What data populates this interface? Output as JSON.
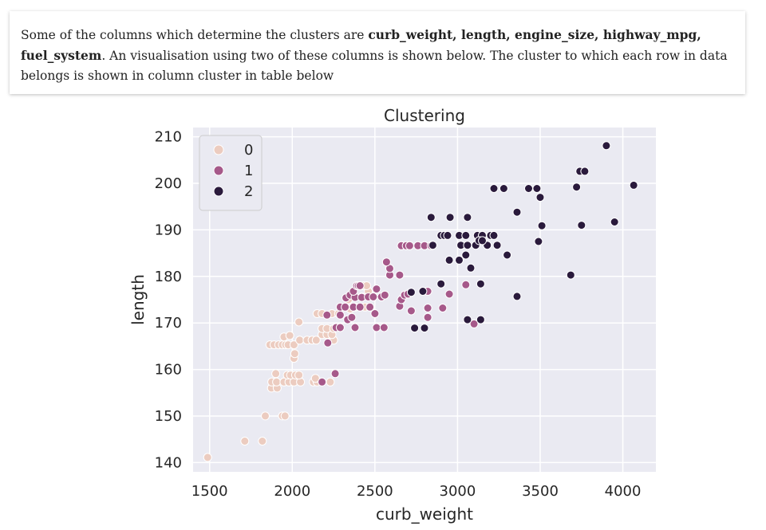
{
  "description": {
    "part1": "Some of the columns which determine the clusters are ",
    "bold_columns": "curb_weight, length, engine_size, highway_mpg, fuel_system",
    "part2": ". An visualisation using two of these columns is shown below. The cluster to which each row in data belongs is shown in column cluster in table below"
  },
  "chart_data": {
    "type": "scatter",
    "title": "Clustering",
    "xlabel": "curb_weight",
    "ylabel": "length",
    "xlim": [
      1400,
      4200
    ],
    "ylim": [
      138,
      212
    ],
    "xticks": [
      1500,
      2000,
      2500,
      3000,
      3500,
      4000
    ],
    "yticks": [
      140,
      150,
      160,
      170,
      180,
      190,
      200,
      210
    ],
    "grid": true,
    "legend_position": "top-left",
    "legend_title": "",
    "colors": {
      "0": "#ecccc0",
      "1": "#a6598a",
      "2": "#2a1a3c",
      "background": "#eaeaf2",
      "grid": "#ffffff",
      "marker_edge": "#ffffff"
    },
    "series": [
      {
        "name": "0",
        "points": [
          [
            1488,
            141.1
          ],
          [
            1713,
            144.6
          ],
          [
            1819,
            144.6
          ],
          [
            1837,
            150.0
          ],
          [
            1940,
            150.0
          ],
          [
            1956,
            150.0
          ],
          [
            1874,
            156.0
          ],
          [
            1909,
            156.0
          ],
          [
            1876,
            157.3
          ],
          [
            1905,
            157.3
          ],
          [
            1950,
            157.3
          ],
          [
            1980,
            157.3
          ],
          [
            2010,
            157.3
          ],
          [
            2050,
            157.3
          ],
          [
            2128,
            157.3
          ],
          [
            2150,
            157.3
          ],
          [
            2230,
            157.3
          ],
          [
            1900,
            159.1
          ],
          [
            1970,
            158.8
          ],
          [
            1990,
            158.8
          ],
          [
            2020,
            158.8
          ],
          [
            2040,
            158.8
          ],
          [
            2140,
            158.1
          ],
          [
            2010,
            162.4
          ],
          [
            2015,
            163.4
          ],
          [
            1865,
            165.3
          ],
          [
            1890,
            165.3
          ],
          [
            1918,
            165.3
          ],
          [
            1940,
            165.3
          ],
          [
            1960,
            165.3
          ],
          [
            1975,
            165.3
          ],
          [
            2010,
            165.3
          ],
          [
            2045,
            166.3
          ],
          [
            2090,
            166.3
          ],
          [
            2120,
            166.3
          ],
          [
            2145,
            166.3
          ],
          [
            2250,
            166.3
          ],
          [
            1950,
            167.0
          ],
          [
            1985,
            167.3
          ],
          [
            2180,
            167.5
          ],
          [
            2210,
            167.5
          ],
          [
            2240,
            167.5
          ],
          [
            2180,
            168.8
          ],
          [
            2210,
            168.8
          ],
          [
            2250,
            168.8
          ],
          [
            2040,
            170.2
          ],
          [
            2150,
            172.0
          ],
          [
            2180,
            172.0
          ],
          [
            2240,
            172.0
          ],
          [
            2280,
            172.0
          ],
          [
            2350,
            173.0
          ],
          [
            2380,
            173.4
          ],
          [
            2440,
            173.4
          ],
          [
            2340,
            175.0
          ],
          [
            2420,
            175.6
          ],
          [
            2460,
            176.8
          ],
          [
            2430,
            178.0
          ],
          [
            2450,
            178.0
          ]
        ]
      },
      {
        "name": "1",
        "points": [
          [
            2180,
            157.3
          ],
          [
            2260,
            159.1
          ],
          [
            2215,
            165.7
          ],
          [
            2265,
            169.0
          ],
          [
            2290,
            169.0
          ],
          [
            2380,
            169.0
          ],
          [
            2510,
            169.0
          ],
          [
            2555,
            169.0
          ],
          [
            2335,
            170.7
          ],
          [
            2210,
            171.7
          ],
          [
            2290,
            171.7
          ],
          [
            2360,
            171.2
          ],
          [
            2500,
            172.0
          ],
          [
            2290,
            173.4
          ],
          [
            2320,
            173.4
          ],
          [
            2370,
            173.4
          ],
          [
            2410,
            173.4
          ],
          [
            2470,
            173.4
          ],
          [
            2650,
            173.6
          ],
          [
            2720,
            172.6
          ],
          [
            2820,
            173.2
          ],
          [
            2910,
            173.2
          ],
          [
            2820,
            171.2
          ],
          [
            3100,
            169.8
          ],
          [
            2325,
            175.4
          ],
          [
            2350,
            176.0
          ],
          [
            2380,
            175.5
          ],
          [
            2420,
            175.5
          ],
          [
            2460,
            175.6
          ],
          [
            2490,
            175.6
          ],
          [
            2540,
            175.6
          ],
          [
            2560,
            176.0
          ],
          [
            2660,
            175.0
          ],
          [
            2680,
            176.0
          ],
          [
            2700,
            176.2
          ],
          [
            2370,
            176.8
          ],
          [
            2390,
            178.0
          ],
          [
            2400,
            178.0
          ],
          [
            2410,
            178.0
          ],
          [
            2510,
            177.3
          ],
          [
            2820,
            176.8
          ],
          [
            2950,
            176.2
          ],
          [
            3050,
            178.2
          ],
          [
            2650,
            180.3
          ],
          [
            2590,
            180.3
          ],
          [
            2590,
            181.7
          ],
          [
            2570,
            183.1
          ],
          [
            2660,
            186.6
          ],
          [
            2690,
            186.6
          ],
          [
            2710,
            186.6
          ],
          [
            2760,
            186.6
          ],
          [
            2800,
            186.6
          ],
          [
            2840,
            186.6
          ]
        ]
      },
      {
        "name": "2",
        "points": [
          [
            2840,
            192.7
          ],
          [
            2955,
            192.7
          ],
          [
            3060,
            192.7
          ],
          [
            2900,
            188.8
          ],
          [
            2920,
            188.8
          ],
          [
            2940,
            188.8
          ],
          [
            3010,
            188.8
          ],
          [
            3050,
            188.8
          ],
          [
            3120,
            188.8
          ],
          [
            3150,
            188.8
          ],
          [
            3200,
            188.8
          ],
          [
            3220,
            188.8
          ],
          [
            2850,
            186.7
          ],
          [
            3020,
            186.7
          ],
          [
            3060,
            186.7
          ],
          [
            3110,
            186.7
          ],
          [
            3180,
            186.7
          ],
          [
            3240,
            186.7
          ],
          [
            3130,
            187.7
          ],
          [
            3150,
            187.7
          ],
          [
            3300,
            184.6
          ],
          [
            3050,
            184.6
          ],
          [
            2950,
            183.5
          ],
          [
            3010,
            183.5
          ],
          [
            3080,
            181.8
          ],
          [
            3220,
            198.9
          ],
          [
            3280,
            198.9
          ],
          [
            3430,
            198.9
          ],
          [
            3480,
            198.9
          ],
          [
            3500,
            197.0
          ],
          [
            3360,
            193.8
          ],
          [
            3510,
            190.9
          ],
          [
            3490,
            187.5
          ],
          [
            3720,
            199.2
          ],
          [
            3740,
            202.6
          ],
          [
            3770,
            202.6
          ],
          [
            3900,
            208.1
          ],
          [
            4066,
            199.6
          ],
          [
            3750,
            191.0
          ],
          [
            3950,
            191.7
          ],
          [
            3685,
            180.3
          ],
          [
            3360,
            175.7
          ],
          [
            2900,
            178.4
          ],
          [
            3140,
            178.4
          ],
          [
            2720,
            176.6
          ],
          [
            2790,
            176.8
          ],
          [
            2740,
            168.9
          ],
          [
            2800,
            168.9
          ],
          [
            3060,
            170.7
          ],
          [
            3140,
            170.7
          ]
        ]
      }
    ]
  }
}
